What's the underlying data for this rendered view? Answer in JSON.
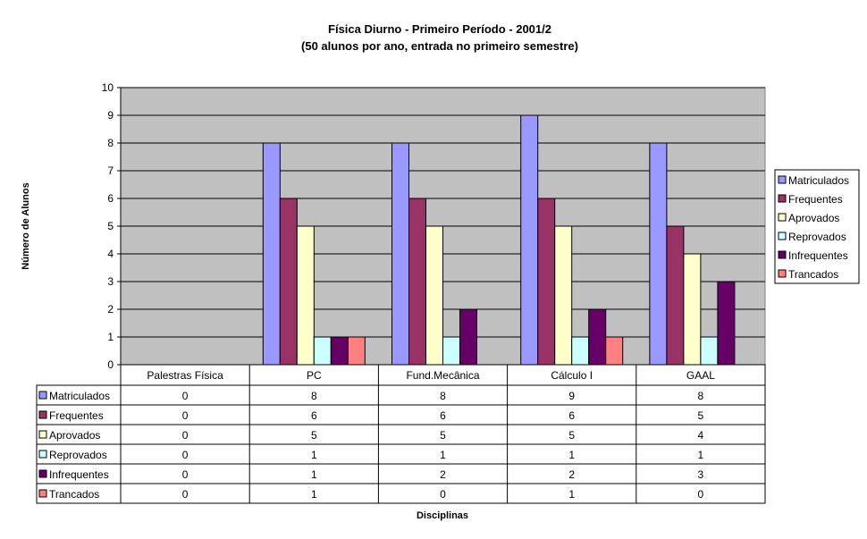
{
  "chart_data": {
    "type": "bar",
    "title": "Física Diurno - Primeiro Período - 2001/2",
    "subtitle": "(50 alunos por ano, entrada no primeiro semestre)",
    "xlabel": "Disciplinas",
    "ylabel": "Número de Alunos",
    "ylim": [
      0,
      10
    ],
    "yticks": [
      "0",
      "1",
      "2",
      "3",
      "4",
      "5",
      "6",
      "7",
      "8",
      "9",
      "10"
    ],
    "grid": true,
    "legend_position": "right",
    "plot_background": "#C0C0C0",
    "categories": [
      "Palestras Física",
      "PC",
      "Fund.Mecânica",
      "Cálculo I",
      "GAAL"
    ],
    "series": [
      {
        "name": "Matriculados",
        "color": "#9999FF",
        "values": [
          0,
          8,
          8,
          9,
          8
        ]
      },
      {
        "name": "Frequentes",
        "color": "#993366",
        "values": [
          0,
          6,
          6,
          6,
          5
        ]
      },
      {
        "name": "Aprovados",
        "color": "#FFFFCC",
        "values": [
          0,
          5,
          5,
          5,
          4
        ]
      },
      {
        "name": "Reprovados",
        "color": "#CCFFFF",
        "values": [
          0,
          1,
          1,
          1,
          1
        ]
      },
      {
        "name": "Infrequentes",
        "color": "#660066",
        "values": [
          0,
          1,
          2,
          2,
          3
        ]
      },
      {
        "name": "Trancados",
        "color": "#FF8080",
        "values": [
          0,
          1,
          0,
          1,
          0
        ]
      }
    ],
    "data_table": true
  }
}
